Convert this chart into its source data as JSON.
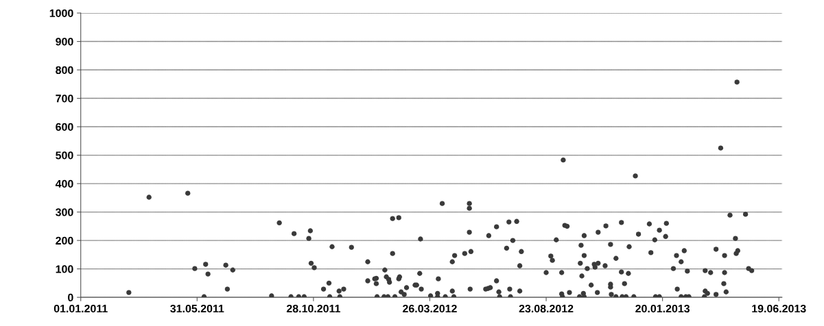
{
  "chart_data": {
    "type": "scatter",
    "xlim": [
      "2011-01-01",
      "2013-06-23"
    ],
    "xticks": [
      {
        "value": "2011-01-01",
        "label": "01.01.2011"
      },
      {
        "value": "2011-05-31",
        "label": "31.05.2011"
      },
      {
        "value": "2011-10-28",
        "label": "28.10.2011"
      },
      {
        "value": "2012-03-26",
        "label": "26.03.2012"
      },
      {
        "value": "2012-08-23",
        "label": "23.08.2012"
      },
      {
        "value": "2013-01-20",
        "label": "20.01.2013"
      },
      {
        "value": "2013-06-19",
        "label": "19.06.2013"
      }
    ],
    "ylim": [
      0,
      1000
    ],
    "yticks": [
      0,
      100,
      200,
      300,
      400,
      500,
      600,
      700,
      800,
      900,
      1000
    ],
    "grid": "y",
    "marker": "circle",
    "series": [
      {
        "color": "#3a3a3a",
        "x": [
          "2011-03-04",
          "2011-03-30",
          "2011-05-19",
          "2011-05-28",
          "2011-06-09",
          "2011-06-11",
          "2011-06-14",
          "2011-07-07",
          "2011-07-09",
          "2011-07-16",
          "2011-09-04",
          "2011-09-14",
          "2011-09-29",
          "2011-10-03",
          "2011-10-09",
          "2011-10-16",
          "2011-10-22",
          "2011-10-24",
          "2011-10-25",
          "2011-10-29",
          "2011-11-10",
          "2011-11-17",
          "2011-11-18",
          "2011-11-21",
          "2011-11-30",
          "2011-12-01",
          "2011-12-06",
          "2011-12-16",
          "2012-01-06",
          "2012-01-06",
          "2012-01-15",
          "2012-01-17",
          "2012-01-17",
          "2012-01-18",
          "2012-01-27",
          "2012-01-28",
          "2012-01-30",
          "2012-02-01",
          "2012-02-02",
          "2012-02-03",
          "2012-02-07",
          "2012-02-07",
          "2012-02-10",
          "2012-02-15",
          "2012-02-16",
          "2012-02-15",
          "2012-02-18",
          "2012-02-22",
          "2012-02-25",
          "2012-03-07",
          "2012-03-09",
          "2012-03-13",
          "2012-03-14",
          "2012-03-15",
          "2012-03-27",
          "2012-04-05",
          "2012-04-05",
          "2012-04-06",
          "2012-04-11",
          "2012-04-15",
          "2012-04-24",
          "2012-04-24",
          "2012-04-26",
          "2012-04-27",
          "2012-05-10",
          "2012-05-16",
          "2012-05-16",
          "2012-05-16",
          "2012-05-17",
          "2012-05-18",
          "2012-06-06",
          "2012-06-09",
          "2012-06-10",
          "2012-06-12",
          "2012-06-20",
          "2012-06-20",
          "2012-06-23",
          "2012-06-24",
          "2012-07-03",
          "2012-07-06",
          "2012-07-07",
          "2012-07-08",
          "2012-07-11",
          "2012-07-16",
          "2012-07-20",
          "2012-07-20",
          "2012-07-22",
          "2012-08-23",
          "2012-08-29",
          "2012-08-31",
          "2012-09-05",
          "2012-09-12",
          "2012-09-12",
          "2012-09-13",
          "2012-09-14",
          "2012-09-16",
          "2012-09-19",
          "2012-09-22",
          "2012-10-05",
          "2012-10-06",
          "2012-10-07",
          "2012-10-08",
          "2012-10-10",
          "2012-10-11",
          "2012-10-11",
          "2012-10-11",
          "2012-10-15",
          "2012-10-20",
          "2012-10-24",
          "2012-10-25",
          "2012-10-28",
          "2012-10-29",
          "2012-10-29",
          "2012-11-07",
          "2012-11-08",
          "2012-11-14",
          "2012-11-14",
          "2012-11-14",
          "2012-11-15",
          "2012-11-21",
          "2012-11-21",
          "2012-11-28",
          "2012-11-28",
          "2012-11-29",
          "2012-12-02",
          "2012-12-04",
          "2012-12-07",
          "2012-12-08",
          "2012-12-14",
          "2012-12-16",
          "2012-12-20",
          "2013-01-03",
          "2013-01-05",
          "2013-01-10",
          "2013-01-11",
          "2013-01-16",
          "2013-01-16",
          "2013-01-24",
          "2013-01-25",
          "2013-02-03",
          "2013-02-07",
          "2013-02-08",
          "2013-02-13",
          "2013-02-13",
          "2013-02-17",
          "2013-02-19",
          "2013-02-21",
          "2013-02-23",
          "2013-03-15",
          "2013-03-16",
          "2013-03-16",
          "2013-03-19",
          "2013-03-23",
          "2013-03-30",
          "2013-03-30",
          "2013-04-05",
          "2013-04-09",
          "2013-04-10",
          "2013-04-10",
          "2013-04-12",
          "2013-04-17",
          "2013-04-24",
          "2013-04-25",
          "2013-04-26",
          "2013-04-27",
          "2013-05-07",
          "2013-05-11",
          "2013-05-15"
        ],
        "values": [
          17,
          352,
          366,
          101,
          2,
          116,
          82,
          113,
          29,
          96,
          5,
          262,
          2,
          224,
          2,
          2,
          207,
          234,
          120,
          104,
          29,
          50,
          2,
          178,
          22,
          2,
          29,
          176,
          58,
          125,
          65,
          67,
          48,
          2,
          2,
          96,
          72,
          2,
          63,
          53,
          277,
          154,
          2,
          65,
          72,
          280,
          19,
          10,
          34,
          43,
          43,
          84,
          205,
          29,
          5,
          14,
          2,
          65,
          330,
          2,
          125,
          22,
          2,
          147,
          154,
          313,
          330,
          229,
          29,
          161,
          29,
          31,
          217,
          34,
          248,
          58,
          19,
          2,
          173,
          265,
          29,
          2,
          200,
          267,
          111,
          22,
          161,
          87,
          145,
          130,
          202,
          87,
          12,
          2,
          483,
          253,
          250,
          17,
          2,
          120,
          183,
          75,
          14,
          2,
          217,
          147,
          101,
          43,
          116,
          106,
          17,
          120,
          229,
          111,
          251,
          186,
          46,
          36,
          10,
          2,
          137,
          263,
          89,
          2,
          48,
          2,
          84,
          178,
          2,
          427,
          222,
          258,
          157,
          202,
          2,
          236,
          2,
          214,
          260,
          101,
          147,
          29,
          125,
          2,
          164,
          2,
          92,
          2,
          2,
          22,
          94,
          14,
          87,
          169,
          10,
          525,
          48,
          147,
          87,
          19,
          289,
          207,
          154,
          757,
          164,
          292,
          101,
          94
        ]
      }
    ]
  }
}
